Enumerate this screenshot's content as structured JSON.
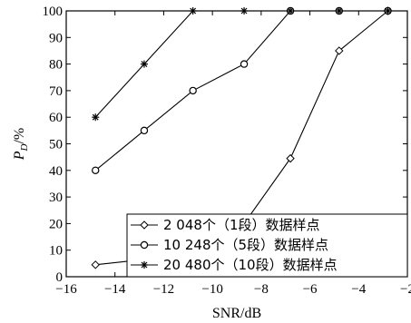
{
  "chart_data": {
    "type": "line",
    "xlabel": "SNR/dB",
    "ylabel": "P_D/%",
    "ylabel_main": "P",
    "ylabel_sub": "D",
    "ylabel_suffix": "/%",
    "xlim": [
      -16,
      -2
    ],
    "ylim": [
      0,
      100
    ],
    "xticks": [
      -16,
      -14,
      -12,
      -10,
      -8,
      -6,
      -4,
      -2
    ],
    "xtick_labels": [
      "−16",
      "−14",
      "−12",
      "−10",
      "−8",
      "−6",
      "−4",
      "−2"
    ],
    "yticks": [
      0,
      10,
      20,
      30,
      40,
      50,
      60,
      70,
      80,
      90,
      100
    ],
    "ytick_labels": [
      "0",
      "10",
      "20",
      "30",
      "40",
      "50",
      "60",
      "70",
      "80",
      "90",
      "100"
    ],
    "grid": false,
    "legend_position": "bottom-right",
    "series": [
      {
        "name": "2 048个（1段）数据样点",
        "marker": "diamond",
        "x": [
          -14.8,
          -12.8,
          -10.8,
          -8.7,
          -6.8,
          -4.8,
          -2.8
        ],
        "y": [
          4.5,
          6.5,
          10,
          20,
          44.5,
          85,
          100
        ]
      },
      {
        "name": "10 248个（5段）数据样点",
        "marker": "circle",
        "x": [
          -14.8,
          -12.8,
          -10.8,
          -8.7,
          -6.8,
          -4.8,
          -2.8
        ],
        "y": [
          40,
          55,
          70,
          80,
          100,
          100,
          100
        ]
      },
      {
        "name": "20 480个（10段）数据样点",
        "marker": "star",
        "x": [
          -14.8,
          -12.8,
          -10.8,
          -8.7,
          -6.8,
          -4.8,
          -2.8
        ],
        "y": [
          60,
          80,
          100,
          100,
          100,
          100,
          100
        ]
      }
    ]
  }
}
